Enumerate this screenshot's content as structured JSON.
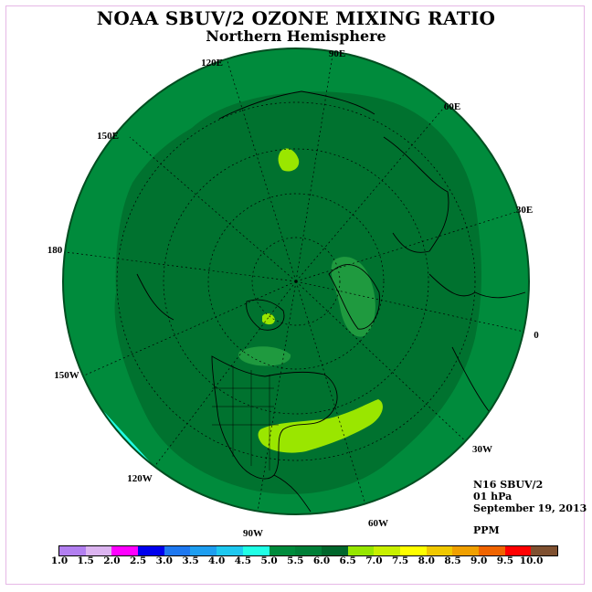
{
  "title": "NOAA SBUV/2 OZONE MIXING RATIO",
  "subtitle": "Northern Hemisphere",
  "info": {
    "satellite": "N16 SBUV/2",
    "level": "01 hPa",
    "date": "September 19, 2013",
    "units": "PPM"
  },
  "longitude_labels": [
    "90E",
    "60E",
    "30E",
    "0",
    "30W",
    "60W",
    "90W",
    "120W",
    "150W",
    "180",
    "150E",
    "120E"
  ],
  "colorbar": {
    "ticks": [
      "1.0",
      "1.5",
      "2.0",
      "2.5",
      "3.0",
      "3.5",
      "4.0",
      "4.5",
      "5.0",
      "5.5",
      "6.0",
      "6.5",
      "7.0",
      "7.5",
      "8.0",
      "8.5",
      "9.0",
      "9.5",
      "10.0"
    ],
    "colors": [
      "#b27ff0",
      "#dcb4f0",
      "#ff00ff",
      "#0000ee",
      "#1e78f0",
      "#1e9ef0",
      "#1ec8f0",
      "#20ffe6",
      "#008b3c",
      "#007f37",
      "#00662b",
      "#96e600",
      "#c8f000",
      "#ffff00",
      "#f0c800",
      "#f0a000",
      "#f06400",
      "#ff0000",
      "#7f5030"
    ]
  },
  "map_colors": {
    "ring_5_0_to_5_5": "#008b3c",
    "core_5_5_to_6_0": "#00722f",
    "patch_6_0_to_6_5": "#1f9a3f",
    "patch_6_5_to_7_0": "#9ae600",
    "patch_4_5_to_5_0": "#20ffe6"
  }
}
